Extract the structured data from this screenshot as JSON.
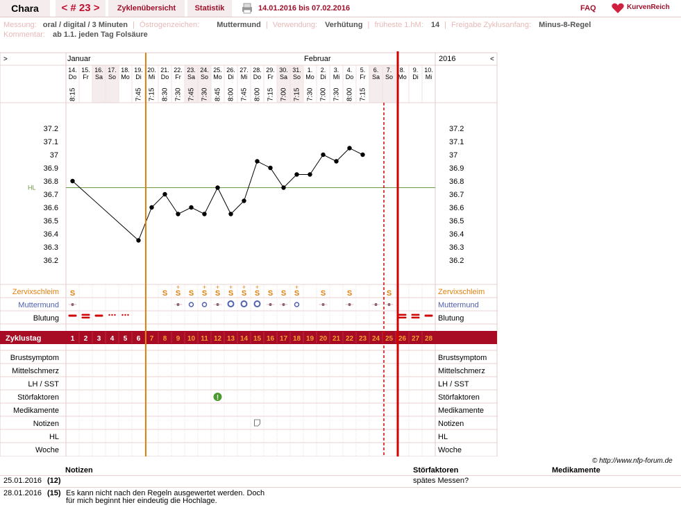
{
  "header": {
    "name": "Chara",
    "cycle_nr": "< # 23 >",
    "tab_overview": "Zyklenübersicht",
    "tab_stats": "Statistik",
    "period": "14.01.2016 bis 07.02.2016",
    "faq": "FAQ",
    "logo": "KurvenReich"
  },
  "info": {
    "messung_label": "Messung:",
    "messung": "oral / digital / 3 Minuten",
    "oestrogen_label": "Östrogenzeichen:",
    "oestrogen": "Muttermund",
    "verwendung_label": "Verwendung:",
    "verwendung": "Verhütung",
    "hm_label": "früheste 1.hM:",
    "hm": "14",
    "freigabe_label": "Freigabe Zyklusanfang:",
    "freigabe": "Minus-8-Regel",
    "kommentar_label": "Kommentar:",
    "kommentar": "ab 1.1. jeden Tag Folsäure"
  },
  "chart_data": {
    "type": "line",
    "title": "",
    "month_labels": [
      "Januar",
      "Februar"
    ],
    "year": "2016",
    "nav_left": ">",
    "nav_right": "<",
    "days": [
      {
        "date": "14.",
        "wd": "Do",
        "time": "8:15",
        "cd": "1"
      },
      {
        "date": "15.",
        "wd": "Fr",
        "time": "",
        "cd": "2"
      },
      {
        "date": "16.",
        "wd": "Sa",
        "time": "",
        "cd": "3"
      },
      {
        "date": "17.",
        "wd": "So",
        "time": "",
        "cd": "4"
      },
      {
        "date": "18.",
        "wd": "Mo",
        "time": "",
        "cd": "5"
      },
      {
        "date": "19.",
        "wd": "Di",
        "time": "7:45",
        "cd": "6"
      },
      {
        "date": "20.",
        "wd": "Mi",
        "time": "7:15",
        "cd": "7"
      },
      {
        "date": "21.",
        "wd": "Do",
        "time": "8:30",
        "cd": "8"
      },
      {
        "date": "22.",
        "wd": "Fr",
        "time": "7:30",
        "cd": "9"
      },
      {
        "date": "23.",
        "wd": "Sa",
        "time": "7:45",
        "cd": "10"
      },
      {
        "date": "24.",
        "wd": "So",
        "time": "7:30",
        "cd": "11"
      },
      {
        "date": "25.",
        "wd": "Mo",
        "time": "8:45",
        "cd": "12"
      },
      {
        "date": "26.",
        "wd": "Di",
        "time": "8:00",
        "cd": "13"
      },
      {
        "date": "27.",
        "wd": "Mi",
        "time": "7:45",
        "cd": "14"
      },
      {
        "date": "28.",
        "wd": "Do",
        "time": "8:00",
        "cd": "15"
      },
      {
        "date": "29.",
        "wd": "Fr",
        "time": "7:15",
        "cd": "16"
      },
      {
        "date": "30.",
        "wd": "Sa",
        "time": "7:00",
        "cd": "17"
      },
      {
        "date": "31.",
        "wd": "So",
        "time": "7:15",
        "cd": "18"
      },
      {
        "date": "1.",
        "wd": "Mo",
        "time": "7:30",
        "cd": "19"
      },
      {
        "date": "2.",
        "wd": "Di",
        "time": "7:00",
        "cd": "20"
      },
      {
        "date": "3.",
        "wd": "Mi",
        "time": "7:30",
        "cd": "21"
      },
      {
        "date": "4.",
        "wd": "Do",
        "time": "8:00",
        "cd": "22"
      },
      {
        "date": "5.",
        "wd": "Fr",
        "time": "7:15",
        "cd": "23"
      },
      {
        "date": "6.",
        "wd": "Sa",
        "time": "",
        "cd": "24"
      },
      {
        "date": "7.",
        "wd": "So",
        "time": "",
        "cd": "25"
      },
      {
        "date": "8.",
        "wd": "Mo",
        "time": "",
        "cd": "26"
      },
      {
        "date": "9.",
        "wd": "Di",
        "time": "",
        "cd": "27"
      },
      {
        "date": "10.",
        "wd": "Mi",
        "time": "",
        "cd": "28"
      }
    ],
    "temperatures": [
      36.8,
      null,
      null,
      null,
      null,
      36.35,
      36.6,
      36.7,
      36.55,
      36.6,
      36.55,
      36.75,
      36.55,
      36.65,
      36.95,
      36.9,
      36.75,
      36.85,
      36.85,
      37.0,
      36.95,
      37.05,
      37.0,
      null,
      null,
      null,
      null,
      null
    ],
    "y_ticks": [
      "37.2",
      "37.1",
      "37",
      "36.9",
      "36.8",
      "36.7",
      "36.6",
      "36.5",
      "36.4",
      "36.3",
      "36.2"
    ],
    "ylim": [
      36.2,
      37.2
    ],
    "hl_label": "HL",
    "hl_value": 36.75,
    "row_labels": {
      "zervix": "Zervixschleim",
      "muttermund": "Muttermund",
      "blutung": "Blutung",
      "zyklustag": "Zyklustag",
      "brust": "Brustsymptom",
      "mittel": "Mittelschmerz",
      "lh": "LH / SST",
      "stoer": "Störfaktoren",
      "medi": "Medikamente",
      "notizen": "Notizen",
      "hl": "HL",
      "woche": "Woche"
    },
    "zervix": [
      "S",
      "",
      "",
      "",
      "",
      "",
      "",
      "S",
      "S+",
      "S",
      "S+",
      "S+",
      "S+",
      "S+",
      "S+",
      "S",
      "S",
      "S+",
      "",
      "S",
      "",
      "S",
      "",
      "",
      "S",
      "",
      "",
      ""
    ],
    "muttermund": [
      "dot",
      "",
      "",
      "",
      "",
      "",
      "",
      "",
      "dot",
      "ring",
      "ring",
      "dot",
      "ring-big",
      "ring-big",
      "ring-big",
      "dot",
      "dot",
      "ring",
      "",
      "dot",
      "",
      "dot",
      "",
      "dot",
      "dot",
      "",
      "",
      ""
    ],
    "blutung": [
      "bar",
      "bar2",
      "bar",
      "dots3",
      "dots3",
      "",
      "",
      "",
      "",
      "",
      "",
      "",
      "",
      "",
      "",
      "",
      "",
      "",
      "",
      "",
      "",
      "",
      "",
      "",
      "",
      "bar2",
      "bar2",
      "bar"
    ],
    "stoer_day": 12,
    "notiz_day": 15,
    "orange_line_after_day": 6,
    "dotted_line_after_day": 24,
    "red_line_after_day": 25,
    "weekend_days": [
      3,
      4,
      10,
      11,
      17,
      18,
      24,
      25
    ]
  },
  "copyright": "© http://www.nfp-forum.de",
  "notes": {
    "col_notes": "Notizen",
    "col_stoer": "Störfaktoren",
    "col_medi": "Medikamente",
    "rows": [
      {
        "date": "25.01.2016",
        "cd": "(12)",
        "note": "",
        "stoer": "spätes Messen?"
      },
      {
        "date": "28.01.2016",
        "cd": "(15)",
        "note_line1": "Es kann nicht nach den Regeln ausgewertet werden. Doch",
        "note_line2": "für mich beginnt hier eindeutig die Hochlage.",
        "stoer": ""
      }
    ]
  }
}
